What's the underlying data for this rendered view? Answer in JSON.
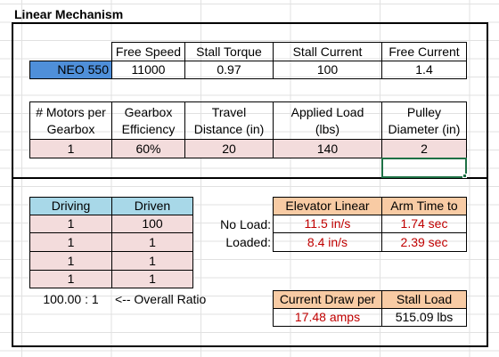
{
  "title": "Linear Mechanism",
  "motor": {
    "headers": [
      "Free Speed",
      "Stall Torque",
      "Stall Current",
      "Free Current"
    ],
    "name": "NEO 550",
    "values": [
      "11000",
      "0.97",
      "100",
      "1.4"
    ]
  },
  "inputs": {
    "headers": [
      [
        "# Motors per",
        "Gearbox"
      ],
      [
        "Gearbox",
        "Efficiency"
      ],
      [
        "Travel",
        "Distance (in)"
      ],
      [
        "Applied Load",
        "(lbs)"
      ],
      [
        "Pulley",
        "Diameter (in)"
      ]
    ],
    "values": [
      "1",
      "60%",
      "20",
      "140",
      "2"
    ]
  },
  "gears": {
    "headers": [
      "Driving",
      "Driven"
    ],
    "rows": [
      [
        "1",
        "100"
      ],
      [
        "1",
        "1"
      ],
      [
        "1",
        "1"
      ],
      [
        "1",
        "1"
      ]
    ],
    "ratio": "100.00 : 1",
    "ratio_label": "<-- Overall Ratio"
  },
  "results": {
    "headers": [
      "Elevator Linear",
      "Arm Time to"
    ],
    "rows": [
      {
        "label": "No Load:",
        "speed": "11.5 in/s",
        "time": "1.74 sec"
      },
      {
        "label": "Loaded:",
        "speed": "8.4 in/s",
        "time": "2.39 sec"
      }
    ]
  },
  "power": {
    "headers": [
      "Current Draw per",
      "Stall Load"
    ],
    "values": [
      "17.48 amps",
      "515.09 lbs"
    ]
  }
}
